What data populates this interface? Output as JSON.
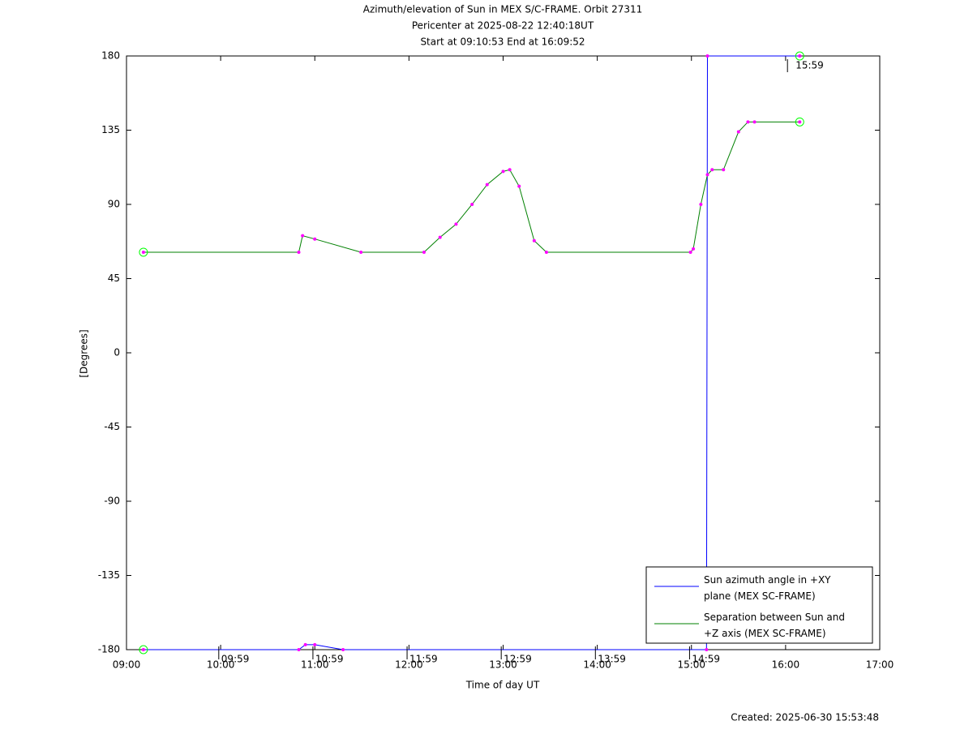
{
  "chart_data": {
    "type": "line",
    "title": [
      "Azimuth/elevation of Sun in MEX S/C-FRAME.  Orbit 27311",
      "Pericenter at 2025-08-22 12:40:18UT",
      "Start at 09:10:53 End at 16:09:52"
    ],
    "xlabel": "Time of day UT",
    "ylabel": "[Degrees]",
    "xlim": [
      9,
      17
    ],
    "xticks": [
      {
        "value": 9,
        "label": "09:00"
      },
      {
        "value": 10,
        "label": "10:00"
      },
      {
        "value": 11,
        "label": "11:00"
      },
      {
        "value": 12,
        "label": "12:00"
      },
      {
        "value": 13,
        "label": "13:00"
      },
      {
        "value": 14,
        "label": "14:00"
      },
      {
        "value": 15,
        "label": "15:00"
      },
      {
        "value": 16,
        "label": "16:00"
      },
      {
        "value": 17,
        "label": "17:00"
      }
    ],
    "ylim": [
      -180,
      180
    ],
    "yticks": [
      -180,
      -135,
      -90,
      -45,
      0,
      45,
      90,
      135,
      180
    ],
    "series": [
      {
        "name": "Sun azimuth angle in +XY\nplane (MEX SC-FRAME)",
        "color": "#0000ff",
        "x": [
          9.18,
          10.83,
          10.9,
          11.0,
          11.3,
          15.16,
          15.17,
          16.15
        ],
        "values": [
          -180,
          -180,
          -177,
          -177,
          -180,
          -180,
          180,
          180
        ]
      },
      {
        "name": "Separation between Sun and\n+Z axis (MEX SC-FRAME)",
        "color": "#008000",
        "x": [
          9.18,
          10.83,
          10.87,
          11.0,
          11.49,
          12.16,
          12.33,
          12.5,
          12.67,
          12.83,
          13.0,
          13.07,
          13.17,
          13.33,
          13.46,
          14.99,
          15.02,
          15.1,
          15.17,
          15.22,
          15.34,
          15.5,
          15.6,
          15.67,
          16.15
        ],
        "values": [
          61,
          61,
          71,
          69,
          61,
          61,
          70,
          78,
          90,
          102,
          110,
          111,
          101,
          68,
          61,
          61,
          63,
          90,
          108,
          111,
          111,
          134,
          140,
          140,
          140
        ]
      }
    ],
    "annotations": [
      {
        "x": 9.98,
        "text": "09:59"
      },
      {
        "x": 10.98,
        "text": "10:59"
      },
      {
        "x": 11.98,
        "text": "11:59"
      },
      {
        "x": 12.98,
        "text": "12:59"
      },
      {
        "x": 13.98,
        "text": "13:59"
      },
      {
        "x": 14.98,
        "text": "14:59"
      }
    ],
    "top_annotation": {
      "x": 16.02,
      "text": "15:59"
    },
    "footer": "Created: 2025-06-30 15:53:48"
  }
}
